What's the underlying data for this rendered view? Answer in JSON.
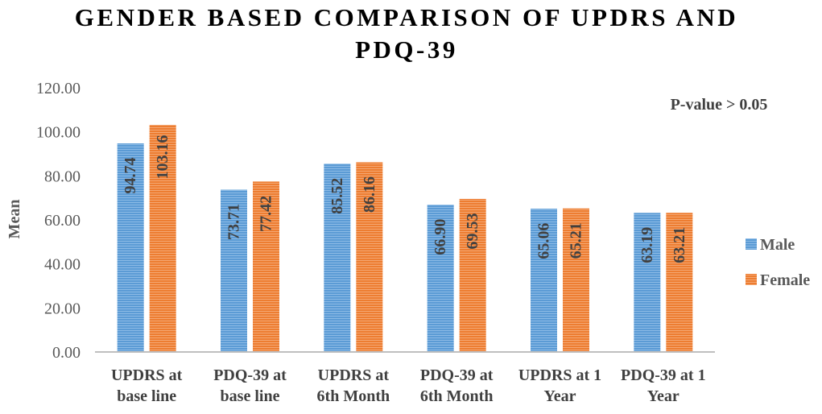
{
  "chart_data": {
    "type": "bar",
    "title_lines": [
      "GENDER BASED COMPARISON OF UPDRS AND",
      "PDQ-39"
    ],
    "ylabel": "Mean",
    "xlabel": "",
    "ylim": [
      0,
      120
    ],
    "y_ticks": [
      "0.00",
      "20.00",
      "40.00",
      "60.00",
      "80.00",
      "100.00",
      "120.00"
    ],
    "categories": [
      [
        "UPDRS at",
        "base line"
      ],
      [
        "PDQ-39 at",
        "base line"
      ],
      [
        "UPDRS at",
        "6th Month"
      ],
      [
        "PDQ-39 at",
        "6th Month"
      ],
      [
        "UPDRS at 1",
        "Year"
      ],
      [
        "PDQ-39 at 1",
        "Year"
      ]
    ],
    "series": [
      {
        "name": "Male",
        "color": "#5B9BD5",
        "values": [
          94.74,
          73.71,
          85.52,
          66.9,
          65.06,
          63.19
        ],
        "labels": [
          "94.74",
          "73.71",
          "85.52",
          "66.90",
          "65.06",
          "63.19"
        ]
      },
      {
        "name": "Female",
        "color": "#ED7D31",
        "values": [
          103.16,
          77.42,
          86.16,
          69.53,
          65.21,
          63.21
        ],
        "labels": [
          "103.16",
          "77.42",
          "86.16",
          "69.53",
          "65.21",
          "63.21"
        ]
      }
    ],
    "annotation": "P-value > 0.05",
    "legend_position": "right",
    "grid": false,
    "bar_fill": "horizontal-stripes"
  }
}
